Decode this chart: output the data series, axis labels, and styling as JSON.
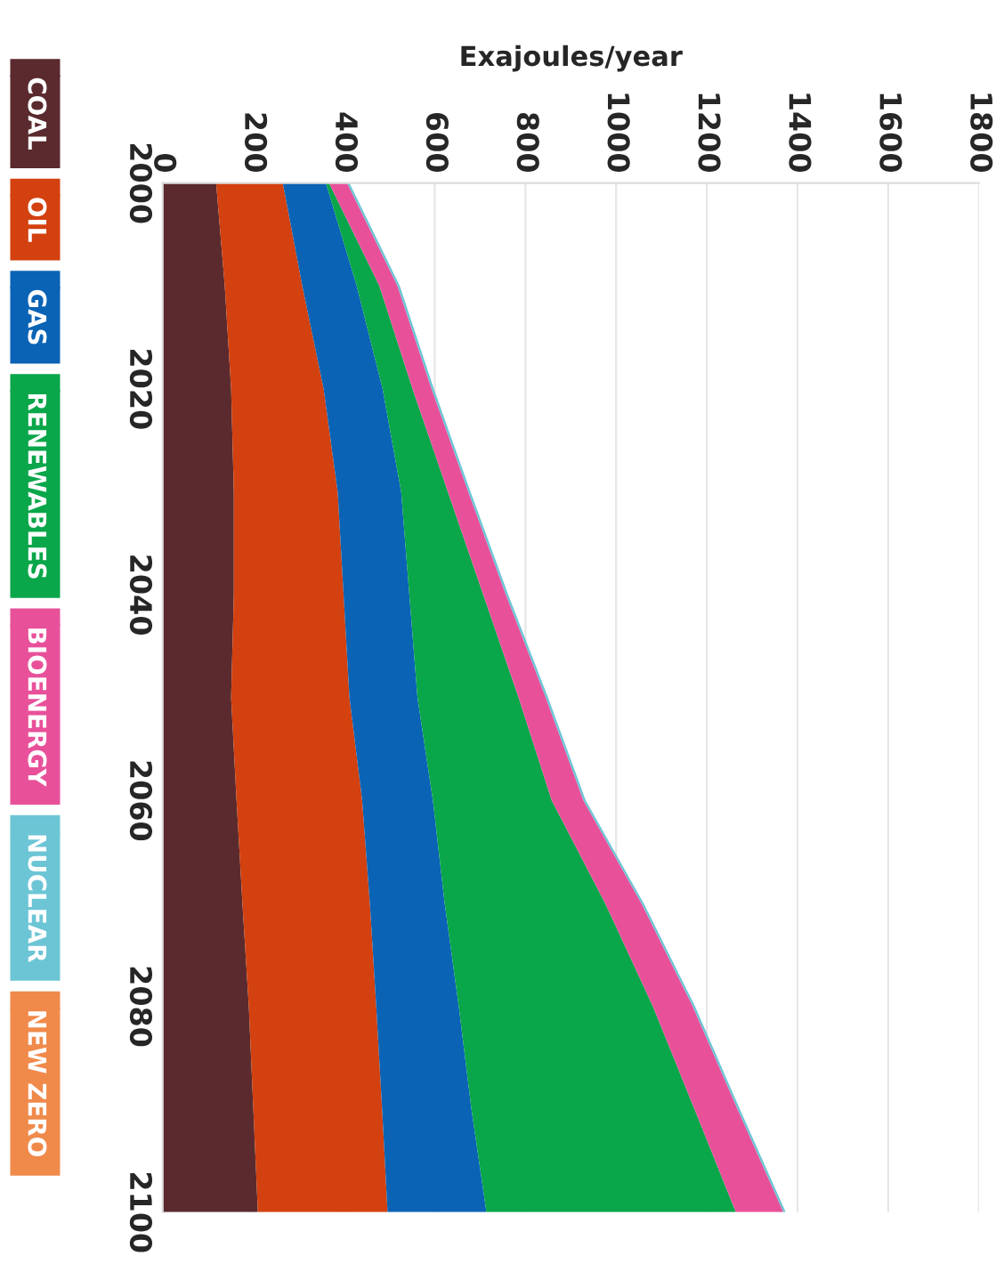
{
  "chart_data": {
    "type": "area",
    "stacked": true,
    "orientation": "horizontal",
    "xlabel": "Exajoules/year",
    "x": [
      2000,
      2010,
      2020,
      2030,
      2040,
      2050,
      2060,
      2070,
      2080,
      2090,
      2100
    ],
    "series": [
      {
        "name": "COAL",
        "color": "#5a2a2e",
        "values": [
          118,
          137,
          151,
          157,
          157,
          151,
          163,
          176,
          190,
          200,
          210
        ]
      },
      {
        "name": "OIL",
        "color": "#d2410f",
        "values": [
          147,
          171,
          204,
          229,
          242,
          261,
          277,
          281,
          281,
          284,
          286
        ]
      },
      {
        "name": "GAS",
        "color": "#0a63b5",
        "values": [
          95,
          120,
          130,
          140,
          145,
          150,
          156,
          165,
          182,
          197,
          218
        ]
      },
      {
        "name": "RENEWABLES",
        "color": "#0aa64a",
        "values": [
          7,
          50,
          66,
          103,
          163,
          223,
          262,
          354,
          428,
          492,
          550
        ]
      },
      {
        "name": "BIOENERGY",
        "color": "#e8519a",
        "values": [
          40,
          40,
          42,
          45,
          50,
          60,
          70,
          80,
          88,
          95,
          105
        ]
      },
      {
        "name": "NUCLEAR",
        "color": "#6cc5d5",
        "values": [
          5,
          5,
          5,
          5,
          5,
          5,
          5,
          5,
          5,
          5,
          5
        ]
      },
      {
        "name": "NEW ZERO",
        "color": "#f08a4b",
        "values": [
          null,
          null,
          null,
          null,
          null,
          null,
          null,
          null,
          null,
          null,
          null
        ]
      }
    ],
    "xlim": [
      0,
      1800
    ],
    "xticks": [
      0,
      200,
      400,
      600,
      800,
      1000,
      1200,
      1400,
      1600,
      1800
    ],
    "ylim": [
      2100,
      2000
    ],
    "yticks": [
      2000,
      2020,
      2040,
      2060,
      2080,
      2100
    ],
    "grid": "x",
    "legend": "left"
  }
}
